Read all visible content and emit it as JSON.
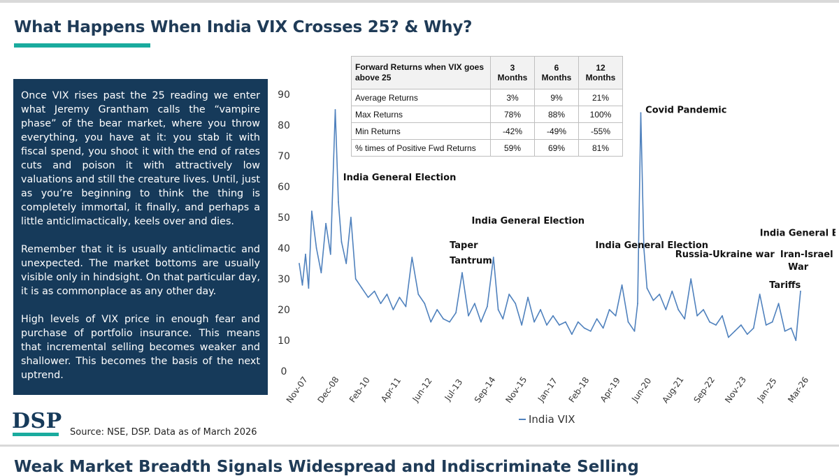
{
  "header": {
    "title": "What Happens When India VIX Crosses 25? & Why?",
    "accent_color": "#1aab9e",
    "title_color": "#1f3b57"
  },
  "textbox": {
    "background": "#163a5a",
    "paragraphs": [
      "Once VIX rises past the 25 reading we enter what Jeremy Grantham calls the “vampire phase” of the bear market, where you throw everything, you have at it: you stab it with fiscal spend, you shoot it with the end of rates cuts and poison it with attractively low valuations and still the creature lives. Until, just as you’re beginning to think the thing is completely immortal, it finally, and perhaps a little anticlimactically, keels over and dies.",
      "Remember that it is usually anticlimactic and unexpected. The market bottoms are usually visible only in hindsight. On that particular day, it is as commonplace as any other day.",
      "High levels of VIX price in enough fear and purchase of portfolio insurance. This means that incremental selling becomes weaker and shallower. This becomes the basis of the next uptrend."
    ]
  },
  "table": {
    "header": [
      "Forward Returns when VIX goes above 25",
      "3 Months",
      "6 Months",
      "12 Months"
    ],
    "rows": [
      [
        "Average Returns",
        "3%",
        "9%",
        "21%"
      ],
      [
        "Max Returns",
        "78%",
        "88%",
        "100%"
      ],
      [
        "Min Returns",
        "-42%",
        "-49%",
        "-55%"
      ],
      [
        "% times of Positive Fwd Returns",
        "59%",
        "69%",
        "81%"
      ]
    ]
  },
  "chart_data": {
    "type": "line",
    "ylim": [
      0,
      90
    ],
    "yticks": [
      0,
      10,
      20,
      30,
      40,
      50,
      60,
      70,
      80,
      90
    ],
    "xticks": [
      "Nov-07",
      "Dec-08",
      "Feb-10",
      "Apr-11",
      "Jun-12",
      "Jul-13",
      "Sep-14",
      "Nov-15",
      "Jan-17",
      "Feb-18",
      "Apr-19",
      "Jun-20",
      "Aug-21",
      "Sep-22",
      "Nov-23",
      "Jan-25",
      "Mar-26"
    ],
    "grid": false,
    "legend_position": "bottom",
    "series": [
      {
        "name": "India VIX",
        "color": "#4f81bd",
        "x": [
          0,
          0.1,
          0.2,
          0.3,
          0.4,
          0.55,
          0.7,
          0.85,
          1.0,
          1.15,
          1.25,
          1.35,
          1.5,
          1.65,
          1.8,
          2.0,
          2.2,
          2.4,
          2.6,
          2.8,
          3.0,
          3.2,
          3.4,
          3.6,
          3.8,
          4.0,
          4.2,
          4.4,
          4.6,
          4.8,
          5.0,
          5.2,
          5.4,
          5.6,
          5.8,
          6.0,
          6.2,
          6.35,
          6.5,
          6.7,
          6.9,
          7.1,
          7.3,
          7.5,
          7.7,
          7.9,
          8.1,
          8.3,
          8.5,
          8.7,
          8.9,
          9.1,
          9.3,
          9.5,
          9.7,
          9.9,
          10.1,
          10.3,
          10.5,
          10.7,
          10.8,
          10.9,
          11.0,
          11.1,
          11.3,
          11.5,
          11.7,
          11.9,
          12.1,
          12.3,
          12.5,
          12.7,
          12.9,
          13.1,
          13.3,
          13.5,
          13.7,
          13.9,
          14.1,
          14.3,
          14.5,
          14.7,
          14.9,
          15.1,
          15.3,
          15.5,
          15.7,
          15.85,
          16.0
        ],
        "values": [
          35,
          28,
          38,
          27,
          52,
          40,
          32,
          48,
          38,
          85,
          55,
          42,
          35,
          50,
          30,
          27,
          24,
          26,
          22,
          25,
          20,
          24,
          21,
          37,
          25,
          22,
          16,
          20,
          17,
          16,
          19,
          32,
          18,
          22,
          16,
          21,
          37,
          20,
          17,
          25,
          22,
          15,
          24,
          16,
          20,
          15,
          18,
          15,
          16,
          12,
          16,
          14,
          13,
          17,
          14,
          20,
          18,
          28,
          16,
          13,
          22,
          84,
          40,
          27,
          23,
          25,
          20,
          26,
          20,
          17,
          30,
          18,
          20,
          16,
          15,
          18,
          11,
          13,
          15,
          12,
          14,
          25,
          15,
          16,
          22,
          13,
          14,
          10,
          26
        ]
      }
    ],
    "annotations": [
      {
        "text": "India General Election",
        "at_x": 1.4,
        "at_y": 62
      },
      {
        "text": "Taper",
        "at_x": 4.8,
        "at_y": 40
      },
      {
        "text": "Tantrum",
        "at_x": 4.8,
        "at_y": 35
      },
      {
        "text": "India General Election",
        "at_x": 5.5,
        "at_y": 48
      },
      {
        "text": "India General Election",
        "at_x": 9.45,
        "at_y": 40
      },
      {
        "text": "Covid Pandemic",
        "at_x": 11.05,
        "at_y": 84
      },
      {
        "text": "Russia-Ukraine war",
        "at_x": 12.0,
        "at_y": 37
      },
      {
        "text": "India General Election",
        "at_x": 14.7,
        "at_y": 44
      },
      {
        "text": "Iran-Israel",
        "at_x": 15.35,
        "at_y": 37
      },
      {
        "text": "War",
        "at_x": 15.6,
        "at_y": 33
      },
      {
        "text": "Tariffs",
        "at_x": 15.0,
        "at_y": 27
      }
    ]
  },
  "legend": {
    "label": "India VIX"
  },
  "footer": {
    "logo": "DSP",
    "source": "Source: NSE, DSP. Data as of March 2026",
    "next_title": "Weak Market Breadth Signals Widespread and Indiscriminate Selling"
  }
}
